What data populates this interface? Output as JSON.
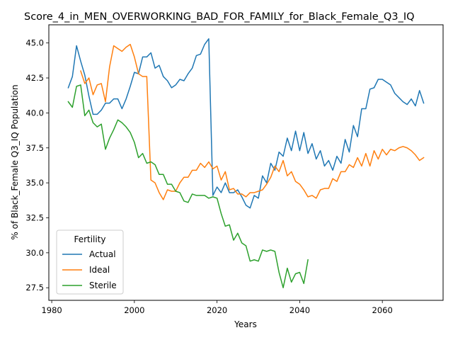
{
  "chart_data": {
    "type": "line",
    "title": "Score_4_in_MEN_OVERWORKING_BAD_FOR_FAMILY_for_Black_Female_Q3_IQ",
    "xlabel": "Years",
    "ylabel": "% of Black_Female Q3_IQ Population",
    "xlim": [
      1979.3,
      2074.7
    ],
    "ylim": [
      26.6,
      46.3
    ],
    "xticks": [
      1980,
      2000,
      2020,
      2040,
      2060
    ],
    "yticks": [
      27.5,
      30.0,
      32.5,
      35.0,
      37.5,
      40.0,
      42.5,
      45.0
    ],
    "xtick_labels": [
      "1980",
      "2000",
      "2020",
      "2040",
      "2060"
    ],
    "ytick_labels": [
      "27.5",
      "30.0",
      "32.5",
      "35.0",
      "37.5",
      "40.0",
      "42.5",
      "45.0"
    ],
    "grid": false,
    "legend": {
      "title": "Fertility",
      "placement": "lower-left"
    },
    "series": [
      {
        "name": "Actual",
        "color": "#1f77b4",
        "x": [
          1984,
          1985,
          1986,
          1987,
          1988,
          1989,
          1990,
          1991,
          1992,
          1993,
          1994,
          1995,
          1996,
          1997,
          1998,
          1999,
          2000,
          2001,
          2002,
          2003,
          2004,
          2005,
          2006,
          2007,
          2008,
          2009,
          2010,
          2011,
          2012,
          2013,
          2014,
          2015,
          2016,
          2017,
          2018,
          2019,
          2020,
          2021,
          2022,
          2023,
          2024,
          2025,
          2026,
          2027,
          2028,
          2029,
          2030,
          2031,
          2032,
          2033,
          2034,
          2035,
          2036,
          2037,
          2038,
          2039,
          2040,
          2041,
          2042,
          2043,
          2044,
          2045,
          2046,
          2047,
          2048,
          2049,
          2050,
          2051,
          2052,
          2053,
          2054,
          2055,
          2056,
          2057,
          2058,
          2059,
          2060,
          2061,
          2062,
          2063,
          2064,
          2065,
          2066,
          2067,
          2068,
          2069,
          2070
        ],
        "values": [
          41.8,
          42.6,
          44.8,
          43.7,
          42.7,
          41.2,
          39.9,
          39.9,
          40.2,
          40.7,
          40.7,
          41.0,
          41.0,
          40.3,
          41.0,
          41.9,
          42.9,
          42.8,
          44.0,
          44.0,
          44.3,
          43.2,
          43.4,
          42.6,
          42.3,
          41.8,
          42.0,
          42.4,
          42.3,
          42.8,
          43.2,
          44.1,
          44.2,
          44.9,
          45.3,
          34.1,
          34.7,
          34.3,
          35.0,
          34.3,
          34.3,
          34.5,
          34.0,
          33.4,
          33.2,
          34.1,
          33.9,
          35.5,
          35.0,
          36.4,
          35.9,
          37.2,
          36.9,
          38.2,
          37.3,
          38.7,
          37.3,
          38.6,
          37.1,
          37.8,
          36.7,
          37.3,
          36.2,
          36.6,
          35.9,
          36.9,
          36.4,
          38.1,
          37.2,
          39.1,
          38.3,
          40.3,
          40.3,
          41.7,
          41.8,
          42.4,
          42.4,
          42.2,
          42.0,
          41.4,
          41.1,
          40.8,
          40.6,
          41.0,
          40.5,
          41.6,
          40.7
        ]
      },
      {
        "name": "Ideal",
        "color": "#ff7f0e",
        "x": [
          1987,
          1988,
          1989,
          1990,
          1991,
          1992,
          1993,
          1994,
          1995,
          1996,
          1997,
          1998,
          1999,
          2000,
          2001,
          2002,
          2003,
          2004,
          2005,
          2006,
          2007,
          2008,
          2009,
          2010,
          2011,
          2012,
          2013,
          2014,
          2015,
          2016,
          2017,
          2018,
          2019,
          2020,
          2021,
          2022,
          2023,
          2024,
          2025,
          2026,
          2027,
          2028,
          2029,
          2030,
          2031,
          2032,
          2033,
          2034,
          2035,
          2036,
          2037,
          2038,
          2039,
          2040,
          2041,
          2042,
          2043,
          2044,
          2045,
          2046,
          2047,
          2048,
          2049,
          2050,
          2051,
          2052,
          2053,
          2054,
          2055,
          2056,
          2057,
          2058,
          2059,
          2060,
          2061,
          2062,
          2063,
          2064,
          2065,
          2066,
          2067,
          2068,
          2069,
          2070
        ],
        "values": [
          43.0,
          42.1,
          42.5,
          41.3,
          42.0,
          42.1,
          40.8,
          43.3,
          44.8,
          44.6,
          44.4,
          44.7,
          44.9,
          44.0,
          42.8,
          42.6,
          42.6,
          35.2,
          35.0,
          34.3,
          33.8,
          34.5,
          34.4,
          34.4,
          35.0,
          35.4,
          35.4,
          35.9,
          35.9,
          36.4,
          36.1,
          36.5,
          36.0,
          36.2,
          35.2,
          35.8,
          34.5,
          34.6,
          34.2,
          34.2,
          34.0,
          34.3,
          34.3,
          34.4,
          34.5,
          34.9,
          35.4,
          36.2,
          35.8,
          36.6,
          35.5,
          35.8,
          35.1,
          34.9,
          34.5,
          34.0,
          34.1,
          33.9,
          34.5,
          34.6,
          34.6,
          35.3,
          35.1,
          35.8,
          35.8,
          36.3,
          36.1,
          36.8,
          36.2,
          37.1,
          36.2,
          37.3,
          36.7,
          37.4,
          37.0,
          37.4,
          37.3,
          37.5,
          37.6,
          37.5,
          37.3,
          37.0,
          36.6,
          36.8
        ]
      },
      {
        "name": "Sterile",
        "color": "#2ca02c",
        "x": [
          1984,
          1985,
          1986,
          1987,
          1988,
          1989,
          1990,
          1991,
          1992,
          1993,
          1994,
          1995,
          1996,
          1997,
          1998,
          1999,
          2000,
          2001,
          2002,
          2003,
          2004,
          2005,
          2006,
          2007,
          2008,
          2009,
          2010,
          2011,
          2012,
          2013,
          2014,
          2015,
          2016,
          2017,
          2018,
          2019,
          2020,
          2021,
          2022,
          2023,
          2024,
          2025,
          2026,
          2027,
          2028,
          2029,
          2030,
          2031,
          2032,
          2033,
          2034,
          2035,
          2036,
          2037,
          2038,
          2039,
          2040,
          2041,
          2042
        ],
        "values": [
          40.8,
          40.4,
          41.9,
          42.0,
          39.8,
          40.2,
          39.3,
          39.0,
          39.2,
          37.4,
          38.2,
          38.8,
          39.5,
          39.3,
          39.0,
          38.6,
          37.9,
          36.8,
          37.1,
          36.4,
          36.5,
          36.3,
          35.6,
          35.6,
          34.9,
          34.9,
          34.4,
          34.3,
          33.7,
          33.6,
          34.2,
          34.1,
          34.1,
          34.1,
          33.9,
          34.0,
          33.9,
          32.8,
          31.9,
          32.0,
          30.9,
          31.4,
          30.7,
          30.5,
          29.4,
          29.5,
          29.4,
          30.2,
          30.1,
          30.2,
          30.1,
          28.6,
          27.5,
          28.9,
          27.9,
          28.5,
          28.6,
          27.8,
          29.5
        ]
      }
    ]
  }
}
